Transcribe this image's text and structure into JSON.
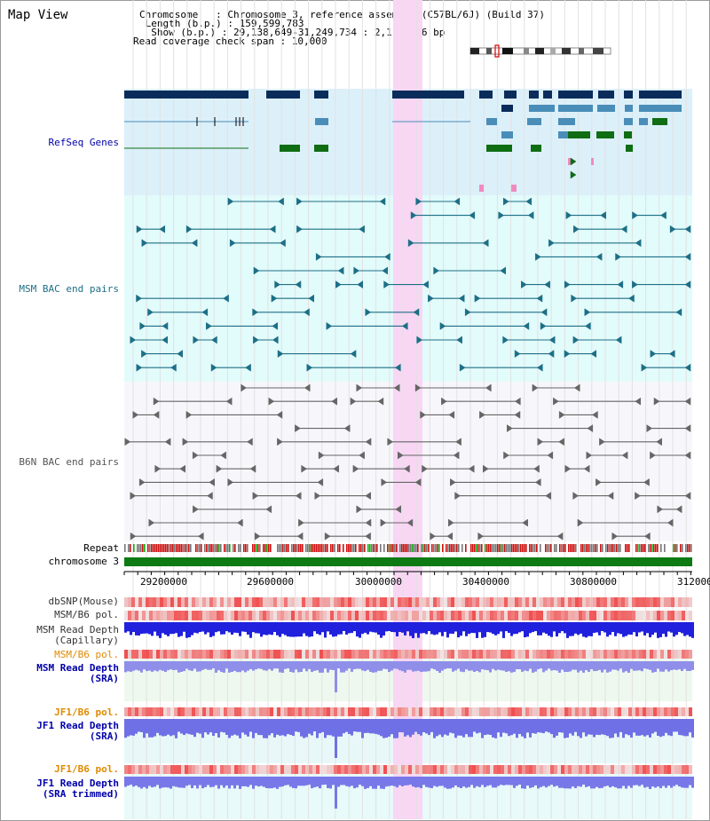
{
  "title": "Map View",
  "info": {
    "chromosome_label": "Chromosome   : ",
    "chromosome_value": "Chromosome 3, reference assembly (C57BL/6J) (Build 37)",
    "length_label": " Length (b.p.) : ",
    "length_value": "159,599,783",
    "show_label": "  Show (b.p.) : ",
    "show_value": "29,138,649-31,249,734 : 2,111,086 bp",
    "coverage_label": "Read coverage check span : ",
    "coverage_value": "10,000"
  },
  "tracks": {
    "refseq": "RefSeq Genes",
    "msm_bac": "MSM BAC end pairs",
    "b6n_bac": "B6N BAC end pairs",
    "repeat": "Repeat",
    "chromosome": "chromosome 3",
    "dbsnp": "dbSNP(Mouse)",
    "msm_b6_pol_1": "MSM/B6 pol.",
    "msm_depth_cap_1": "MSM Read Depth",
    "msm_depth_cap_2": "(Capillary)",
    "msm_b6_pol_2": "MSM/B6 pol.",
    "msm_depth_sra_1": "MSM Read Depth",
    "msm_depth_sra_2": "(SRA)",
    "jf1_b6_pol_1": "JF1/B6 pol.",
    "jf1_depth_sra_1": "JF1 Read Depth",
    "jf1_depth_sra_2": "(SRA)",
    "jf1_b6_pol_2": "JF1/B6 pol.",
    "jf1_depth_trim_1": "JF1 Read Depth",
    "jf1_depth_trim_2": "(SRA trimmed)"
  },
  "axis_ticks": [
    "29200000",
    "29600000",
    "30000000",
    "30400000",
    "30800000",
    "31200000"
  ],
  "colors": {
    "refseq_bg": "#dcf0fa",
    "msm_bg": "#e2fbfb",
    "b6n_bg": "#f7f7fb",
    "highlight": "#f8d6f4",
    "gene_dark": "#0a2c5a",
    "gene_mid": "#4a8db8",
    "gene_green": "#0f6d14",
    "msm_pair": "#1d6f86",
    "b6n_pair": "#666666",
    "chromosome": "#0d7a14",
    "pol_red": "#f05050",
    "depth_blue": "#3333dd",
    "label_blue": "#0000aa",
    "label_orange": "#e08a00"
  }
}
